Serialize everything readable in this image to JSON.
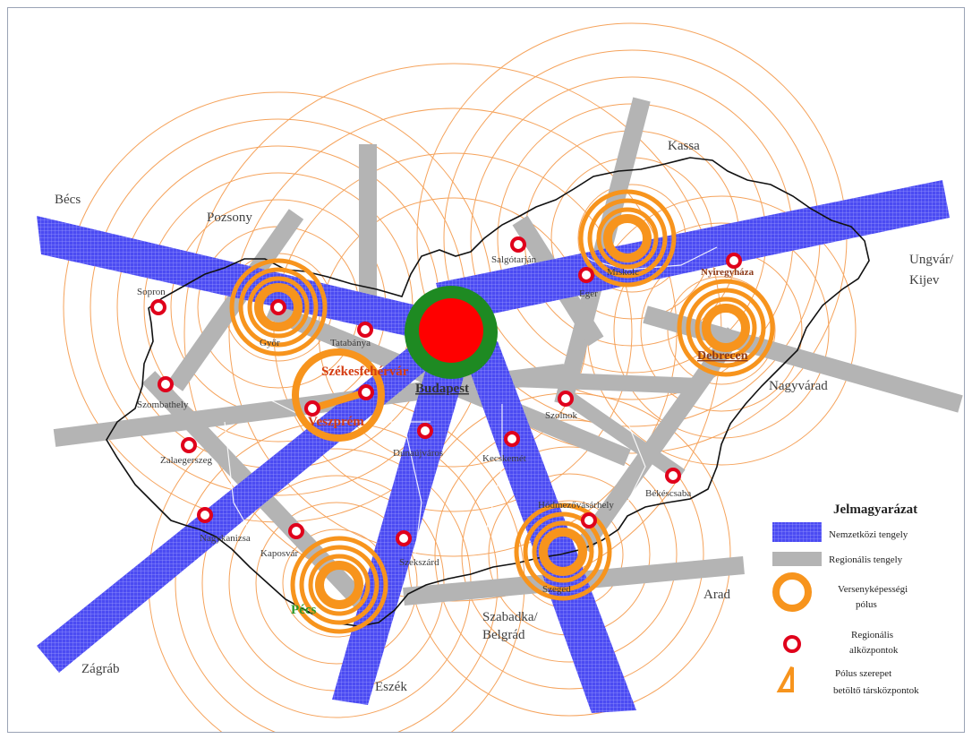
{
  "external_cities": [
    "Bécs",
    "Pozsony",
    "Kassa",
    "Ungvár/",
    "Kijev",
    "Nagyvárad",
    "Arad",
    "Szabadka/",
    "Belgrád",
    "Eszék",
    "Zágráb"
  ],
  "poles": {
    "budapest": "Budapest",
    "szekesfehervar": "Székesfehérvár",
    "veszprem": "Veszprém",
    "debrecen": "Debrecen",
    "pecs": "Pécs",
    "nyiregyhaza": "Nyíregyháza",
    "miskolc": "Miskolc",
    "szeged": "Szeged"
  },
  "regional_centers": [
    "Sopron",
    "Győr",
    "Tatabánya",
    "Szombathely",
    "Zalaegerszeg",
    "Nagykanizsa",
    "Kaposvár",
    "Szekszárd",
    "Dunaújváros",
    "Kecskemét",
    "Szolnok",
    "Salgótarján",
    "Eger",
    "Békéscsaba",
    "Hódmezővásárhely"
  ],
  "legend": {
    "title": "Jelmagyarázat",
    "intl_axis": "Nemzetközi tengely",
    "regional_axis": "Regionális tengely",
    "pole_line1": "Versenyképességi",
    "pole_line2": "pólus",
    "subcenter_line1": "Regionális",
    "subcenter_line2": "alközpontok",
    "co_line1": "Pólus szerepet",
    "co_line2": "betöltő társközpontok"
  },
  "colors": {
    "intl_axis": "#4a4af0",
    "regional_axis": "#b4b4b4",
    "pole_ring": "#f7941d",
    "subcenter": "#e0001b",
    "budapest_outer": "#1e8a22",
    "budapest_inner": "#ff0000",
    "border": "#111111"
  }
}
